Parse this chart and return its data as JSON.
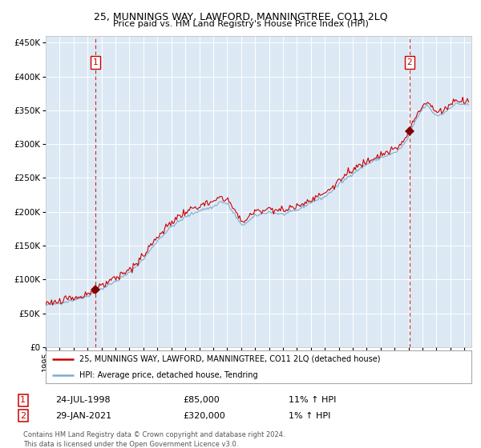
{
  "title": "25, MUNNINGS WAY, LAWFORD, MANNINGTREE, CO11 2LQ",
  "subtitle": "Price paid vs. HM Land Registry's House Price Index (HPI)",
  "bg_color": "#dce9f5",
  "plot_bg_color": "#dce9f5",
  "red_line_color": "#cc0000",
  "blue_line_color": "#7aafd4",
  "marker_color": "#800000",
  "vline_color": "#cc0000",
  "grid_color": "#ffffff",
  "label_box_color": "#cc0000",
  "annotation1": {
    "label": "1",
    "date_x": 1998.56,
    "price": 85000,
    "date_str": "24-JUL-1998",
    "hpi_pct": "11% ↑ HPI"
  },
  "annotation2": {
    "label": "2",
    "date_x": 2021.08,
    "price": 320000,
    "date_str": "29-JAN-2021",
    "hpi_pct": "1% ↑ HPI"
  },
  "legend_line1": "25, MUNNINGS WAY, LAWFORD, MANNINGTREE, CO11 2LQ (detached house)",
  "legend_line2": "HPI: Average price, detached house, Tendring",
  "footer": "Contains HM Land Registry data © Crown copyright and database right 2024.\nThis data is licensed under the Open Government Licence v3.0.",
  "ylim": [
    0,
    460000
  ],
  "ytick_vals": [
    0,
    50000,
    100000,
    150000,
    200000,
    250000,
    300000,
    350000,
    400000,
    450000
  ],
  "xlim_start": 1995.0,
  "xlim_end": 2025.5,
  "sale1_year": 1998.56,
  "sale1_price": 85000,
  "sale2_year": 2021.08,
  "sale2_price": 320000,
  "hpi_anchor_years": [
    1995,
    1996,
    1997,
    1998,
    1999,
    2000,
    2001,
    2002,
    2003,
    2004,
    2005,
    2006,
    2007,
    2007.5,
    2008,
    2008.5,
    2009,
    2009.5,
    2010,
    2011,
    2012,
    2013,
    2014,
    2015,
    2016,
    2017,
    2018,
    2019,
    2020,
    2020.5,
    2021,
    2021.5,
    2022,
    2022.3,
    2022.7,
    2023,
    2023.5,
    2024,
    2024.5,
    2025.3
  ],
  "hpi_anchor_vals": [
    62000,
    65000,
    70000,
    76000,
    86000,
    97000,
    110000,
    130000,
    157000,
    178000,
    192000,
    202000,
    207000,
    215000,
    212000,
    197000,
    180000,
    185000,
    194000,
    200000,
    196000,
    202000,
    214000,
    222000,
    240000,
    257000,
    270000,
    280000,
    287000,
    295000,
    310000,
    335000,
    352000,
    358000,
    348000,
    342000,
    345000,
    355000,
    360000,
    358000
  ]
}
